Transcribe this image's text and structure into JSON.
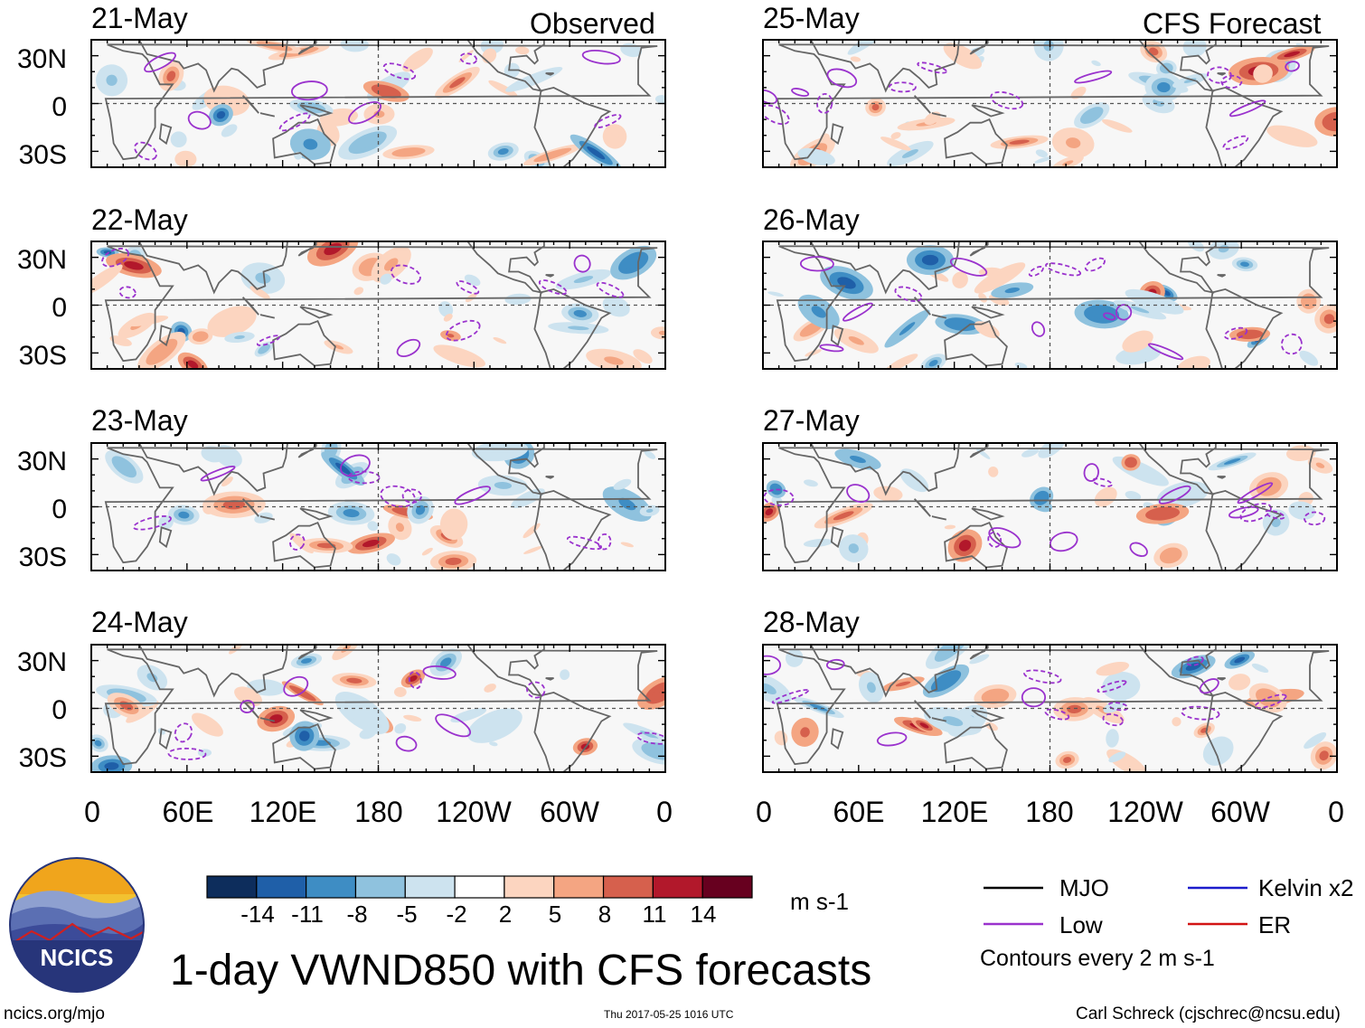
{
  "title": "1-day VWND850 with CFS forecasts",
  "logo": {
    "text": "NCICS"
  },
  "footer": {
    "left": "ncics.org/mjo",
    "center": "Thu 2017-05-25 1016 UTC",
    "right": "Carl Schreck (cjschrec@ncsu.edu)"
  },
  "colorbar": {
    "unit": "m s-1",
    "ticks": [
      "-14",
      "-11",
      "-8",
      "-5",
      "-2",
      "2",
      "5",
      "8",
      "11",
      "14"
    ],
    "colors": [
      "#0d2d5c",
      "#1f5fa8",
      "#3e8dc4",
      "#8fc2de",
      "#cde3ef",
      "#ffffff",
      "#fcd5c0",
      "#f4a582",
      "#d6604d",
      "#b2182b",
      "#67001f"
    ]
  },
  "legend": {
    "items": [
      {
        "label": "MJO",
        "color": "#000000"
      },
      {
        "label": "Low",
        "color": "#9a32cd"
      },
      {
        "label": "Kelvin x2",
        "color": "#1c1ccc"
      },
      {
        "label": "ER",
        "color": "#d21414"
      }
    ],
    "note": "Contours every 2 m s-1"
  },
  "chart_data": {
    "type": "heatmap",
    "variable": "850-hPa meridional wind (VWND850) anomaly, 1-day",
    "units": "m s-1",
    "xaxis": {
      "ticks": [
        "0",
        "60E",
        "120E",
        "180",
        "120W",
        "60W",
        "0"
      ],
      "range_deg_east": [
        0,
        360
      ]
    },
    "yaxis": {
      "ticks": [
        "30N",
        "0",
        "30S"
      ],
      "range_deg": [
        -40,
        40
      ]
    },
    "contour_interval": "2 m s-1",
    "columns": [
      {
        "header": "Observed",
        "panels": [
          {
            "date": "21-May",
            "seed": 11
          },
          {
            "date": "22-May",
            "seed": 23
          },
          {
            "date": "23-May",
            "seed": 37
          },
          {
            "date": "24-May",
            "seed": 41
          }
        ]
      },
      {
        "header": "CFS Forecast",
        "panels": [
          {
            "date": "25-May",
            "seed": 53
          },
          {
            "date": "26-May",
            "seed": 67
          },
          {
            "date": "27-May",
            "seed": 71
          },
          {
            "date": "28-May",
            "seed": 89
          }
        ]
      }
    ]
  }
}
